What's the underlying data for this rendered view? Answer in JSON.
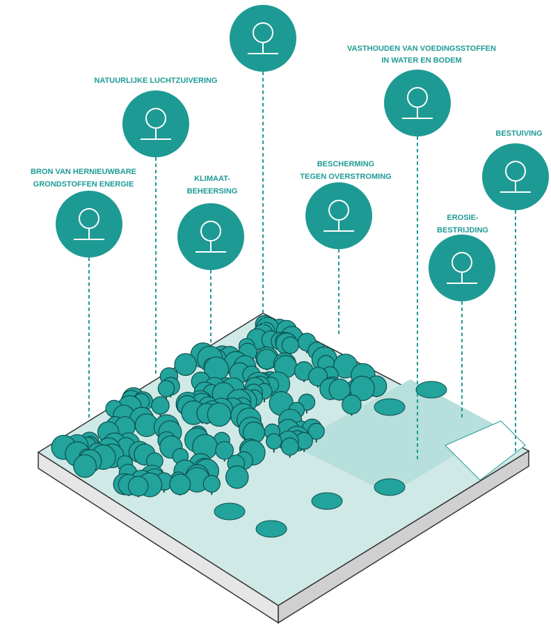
{
  "nodes": [
    {
      "lines": [
        "NATUURLIJKE LUCHTZUIVERING"
      ]
    },
    {
      "lines": [
        "VASTHOUDEN VAN VOEDINGSSTOFFEN",
        "IN WATER EN BODEM"
      ]
    },
    {
      "lines": [
        "BESTUIVING"
      ]
    },
    {
      "lines": [
        "BRON VAN HERNIEUWBARE",
        "GRONDSTOFFEN ENERGIE"
      ]
    },
    {
      "lines": [
        "KLIMAAT-",
        "BEHEERSING"
      ]
    },
    {
      "lines": [
        "BESCHERMING",
        "TEGEN OVERSTROMING"
      ]
    },
    {
      "lines": [
        "EROSIE-",
        "BESTRIJDING"
      ]
    }
  ]
}
